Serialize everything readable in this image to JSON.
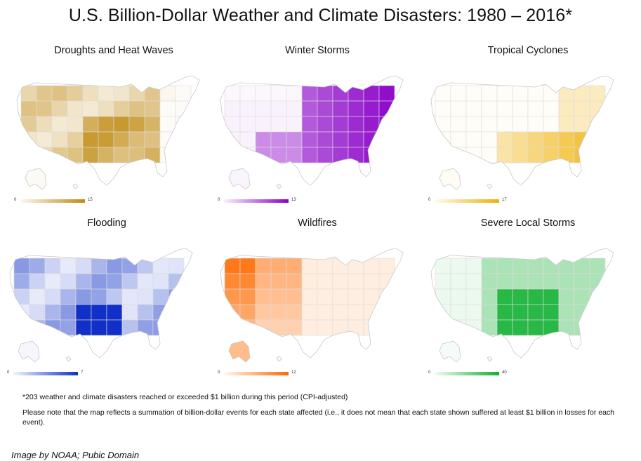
{
  "title": "U.S. Billion-Dollar Weather and Climate Disasters: 1980 – 2016*",
  "panels": [
    {
      "title": "Droughts and Heat Waves",
      "legend_min": "0",
      "legend_max": "15",
      "color": "#c08a10"
    },
    {
      "title": "Winter Storms",
      "legend_min": "0",
      "legend_max": "13",
      "color": "#8a00c8"
    },
    {
      "title": "Tropical Cyclones",
      "legend_min": "0",
      "legend_max": "17",
      "color": "#f0b000"
    },
    {
      "title": "Flooding",
      "legend_min": "0",
      "legend_max": "7",
      "color": "#1030c8"
    },
    {
      "title": "Wildfires",
      "legend_min": "0",
      "legend_max": "12",
      "color": "#ff6a00"
    },
    {
      "title": "Severe Local Storms",
      "legend_min": "0",
      "legend_max": "40",
      "color": "#10b030"
    }
  ],
  "footnote": "*203 weather and climate disasters reached or exceeded $1 billion during this period (CPI-adjusted)",
  "note": "Please note that the map reflects a summation of billion-dollar events for each state affected (i.e., it does not mean that each state shown suffered at least $1 billion in losses for each event).",
  "credit": "Image by NOAA; Pubic Domain"
}
